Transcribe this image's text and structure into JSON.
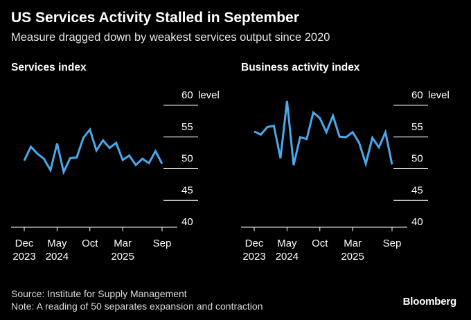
{
  "header": {
    "title": "US Services Activity Stalled in September",
    "subtitle": "Measure dragged down by weakest services output since 2020"
  },
  "footer": {
    "source": "Source: Institute for Supply Management",
    "note": "Note: A reading of 50 separates expansion and contraction",
    "brand": "Bloomberg"
  },
  "colors": {
    "line": "#4aa8ec",
    "axis": "#ffffff",
    "background": "#000000"
  },
  "chart_data": [
    {
      "type": "line",
      "title": "Services index",
      "unit_label": "level",
      "x": [
        "Dec 2023",
        "Jan 2024",
        "Feb 2024",
        "Mar 2024",
        "Apr 2024",
        "May 2024",
        "Jun 2024",
        "Jul 2024",
        "Aug 2024",
        "Sep 2024",
        "Oct 2024",
        "Nov 2024",
        "Dec 2024",
        "Jan 2025",
        "Feb 2025",
        "Mar 2025",
        "Apr 2025",
        "May 2025",
        "Jun 2025",
        "Jul 2025",
        "Aug 2025",
        "Sep 2025"
      ],
      "values": [
        50.5,
        52.7,
        51.6,
        50.8,
        49.0,
        53.2,
        48.7,
        50.9,
        51.0,
        54.1,
        55.4,
        52.1,
        53.7,
        52.5,
        53.3,
        50.6,
        51.3,
        49.8,
        50.8,
        50.1,
        52.0,
        50.0
      ],
      "ylim": [
        40,
        60
      ],
      "yticks": [
        "40",
        "45",
        "50",
        "55",
        "60"
      ],
      "xticks": [
        {
          "index": 0,
          "label": "Dec",
          "sub": "2023"
        },
        {
          "index": 5,
          "label": "May",
          "sub": "2024"
        },
        {
          "index": 10,
          "label": "Oct",
          "sub": ""
        },
        {
          "index": 15,
          "label": "Mar",
          "sub": "2025"
        },
        {
          "index": 21,
          "label": "Sep",
          "sub": ""
        }
      ]
    },
    {
      "type": "line",
      "title": "Business activity index",
      "unit_label": "level",
      "x": [
        "Dec 2023",
        "Jan 2024",
        "Feb 2024",
        "Mar 2024",
        "Apr 2024",
        "May 2024",
        "Jun 2024",
        "Jul 2024",
        "Aug 2024",
        "Sep 2024",
        "Oct 2024",
        "Nov 2024",
        "Dec 2024",
        "Jan 2025",
        "Feb 2025",
        "Mar 2025",
        "Apr 2025",
        "May 2025",
        "Jun 2025",
        "Jul 2025",
        "Aug 2025",
        "Sep 2025"
      ],
      "values": [
        55.1,
        54.6,
        55.8,
        56.0,
        50.9,
        59.9,
        49.8,
        54.2,
        53.9,
        58.1,
        57.2,
        55.0,
        57.6,
        54.3,
        54.2,
        55.0,
        53.3,
        50.0,
        54.1,
        52.6,
        55.0,
        49.9
      ],
      "ylim": [
        40,
        60
      ],
      "yticks": [
        "40",
        "45",
        "50",
        "55",
        "60"
      ],
      "xticks": [
        {
          "index": 0,
          "label": "Dec",
          "sub": "2023"
        },
        {
          "index": 5,
          "label": "May",
          "sub": "2024"
        },
        {
          "index": 10,
          "label": "Oct",
          "sub": ""
        },
        {
          "index": 15,
          "label": "Mar",
          "sub": "2025"
        },
        {
          "index": 21,
          "label": "Sep",
          "sub": ""
        }
      ]
    }
  ]
}
